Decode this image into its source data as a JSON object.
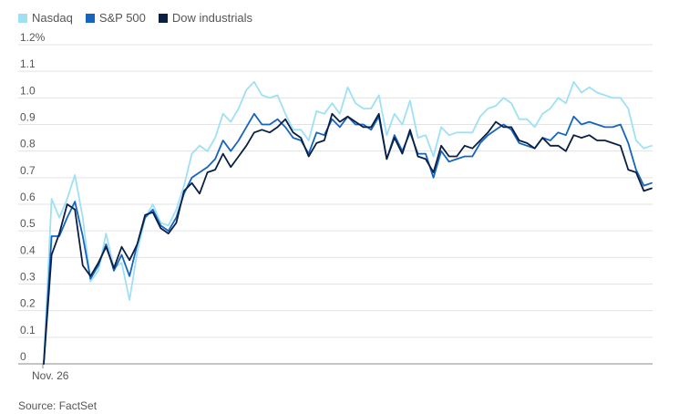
{
  "source": "Source: FactSet",
  "chart_data": {
    "type": "line",
    "title": "",
    "xlabel": "",
    "ylabel": "",
    "ylim": [
      0,
      1.2
    ],
    "y_ticks": [
      "1.2%",
      "1.1",
      "1.0",
      "0.9",
      "0.8",
      "0.7",
      "0.6",
      "0.5",
      "0.4",
      "0.3",
      "0.2",
      "0.1",
      "0"
    ],
    "x_ticks": [
      "Nov. 26"
    ],
    "grid": "horizontal",
    "legend": "top-left",
    "series": [
      {
        "name": "Nasdaq",
        "color": "#9fe0f5",
        "values": [
          0,
          0.62,
          0.55,
          0.62,
          0.71,
          0.55,
          0.31,
          0.35,
          0.49,
          0.36,
          0.38,
          0.24,
          0.42,
          0.55,
          0.6,
          0.53,
          0.52,
          0.58,
          0.67,
          0.79,
          0.82,
          0.8,
          0.85,
          0.94,
          0.91,
          0.96,
          1.03,
          1.06,
          1.01,
          1.0,
          1.01,
          0.94,
          0.88,
          0.88,
          0.84,
          0.95,
          0.94,
          0.98,
          0.94,
          1.04,
          0.98,
          0.96,
          0.96,
          1.01,
          0.86,
          0.94,
          0.9,
          0.99,
          0.85,
          0.86,
          0.78,
          0.89,
          0.86,
          0.87,
          0.87,
          0.87,
          0.93,
          0.96,
          0.97,
          1.0,
          0.98,
          0.92,
          0.92,
          0.89,
          0.94,
          0.96,
          1.0,
          0.98,
          1.06,
          1.02,
          1.04,
          1.02,
          1.01,
          1.0,
          1.0,
          0.96,
          0.84,
          0.81,
          0.82
        ]
      },
      {
        "name": "S&P 500",
        "color": "#1565c0",
        "values": [
          0,
          0.48,
          0.48,
          0.55,
          0.61,
          0.48,
          0.32,
          0.37,
          0.45,
          0.35,
          0.41,
          0.33,
          0.45,
          0.55,
          0.58,
          0.52,
          0.5,
          0.55,
          0.64,
          0.7,
          0.72,
          0.74,
          0.77,
          0.84,
          0.8,
          0.84,
          0.89,
          0.94,
          0.9,
          0.9,
          0.92,
          0.89,
          0.85,
          0.84,
          0.79,
          0.87,
          0.86,
          0.92,
          0.89,
          0.93,
          0.9,
          0.9,
          0.88,
          0.93,
          0.77,
          0.86,
          0.8,
          0.87,
          0.79,
          0.79,
          0.7,
          0.8,
          0.76,
          0.77,
          0.78,
          0.78,
          0.83,
          0.86,
          0.88,
          0.9,
          0.88,
          0.83,
          0.82,
          0.81,
          0.85,
          0.84,
          0.87,
          0.86,
          0.93,
          0.9,
          0.91,
          0.9,
          0.89,
          0.89,
          0.9,
          0.83,
          0.73,
          0.67,
          0.68
        ]
      },
      {
        "name": "Dow industrials",
        "color": "#0b1f44",
        "values": [
          0,
          0.41,
          0.49,
          0.6,
          0.58,
          0.37,
          0.33,
          0.38,
          0.44,
          0.36,
          0.44,
          0.39,
          0.45,
          0.56,
          0.57,
          0.51,
          0.49,
          0.53,
          0.65,
          0.68,
          0.64,
          0.72,
          0.73,
          0.79,
          0.74,
          0.78,
          0.82,
          0.87,
          0.88,
          0.87,
          0.89,
          0.92,
          0.87,
          0.85,
          0.78,
          0.83,
          0.84,
          0.94,
          0.91,
          0.93,
          0.91,
          0.89,
          0.89,
          0.94,
          0.77,
          0.85,
          0.79,
          0.88,
          0.78,
          0.77,
          0.72,
          0.82,
          0.78,
          0.78,
          0.82,
          0.81,
          0.84,
          0.87,
          0.91,
          0.89,
          0.89,
          0.84,
          0.83,
          0.81,
          0.85,
          0.82,
          0.82,
          0.8,
          0.86,
          0.85,
          0.86,
          0.84,
          0.84,
          0.83,
          0.82,
          0.73,
          0.72,
          0.65,
          0.66
        ]
      }
    ]
  }
}
